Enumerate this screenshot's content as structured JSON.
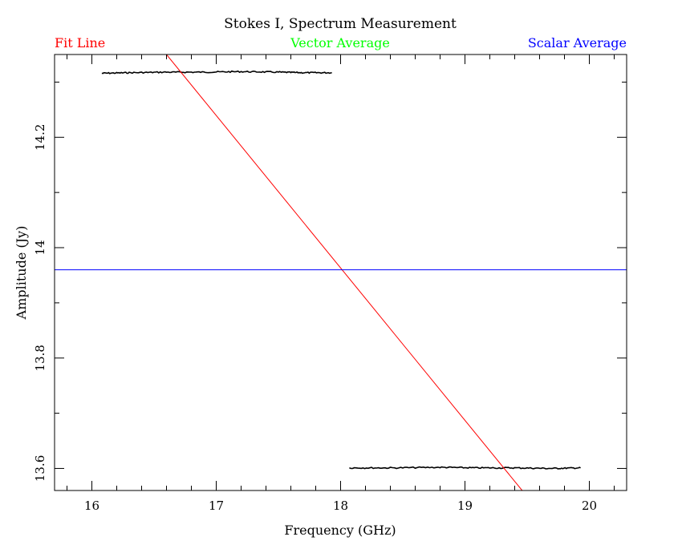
{
  "chart_data": {
    "type": "line",
    "title": "Stokes I, Spectrum Measurement",
    "xlabel": "Frequency (GHz)",
    "ylabel": "Amplitude (Jy)",
    "xlim": [
      15.7,
      20.3
    ],
    "ylim": [
      13.56,
      14.35
    ],
    "x_ticks": [
      16,
      17,
      18,
      19,
      20
    ],
    "y_ticks": [
      13.6,
      13.8,
      14,
      14.2
    ],
    "x_minor_step": 0.2,
    "y_minor_step": 0.1,
    "grid": false,
    "legend_position": "top",
    "legend": [
      {
        "label": "Fit Line",
        "color": "#ff0000"
      },
      {
        "label": "Vector Average",
        "color": "#00ff00"
      },
      {
        "label": "Scalar Average",
        "color": "#0000ff"
      }
    ],
    "series": [
      {
        "kind": "data",
        "color": "#000000",
        "x": [
          16.08,
          16.3,
          16.6,
          16.9,
          17.2,
          17.5,
          17.7,
          17.93
        ],
        "y": [
          14.316,
          14.317,
          14.318,
          14.318,
          14.319,
          14.318,
          14.317,
          14.317
        ]
      },
      {
        "kind": "data",
        "color": "#000000",
        "x": [
          18.07,
          18.4,
          18.8,
          19.1,
          19.4,
          19.7,
          19.93
        ],
        "y": [
          13.601,
          13.601,
          13.602,
          13.601,
          13.601,
          13.6,
          13.601
        ]
      },
      {
        "kind": "fit",
        "color": "#ff0000",
        "x": [
          16.6,
          19.46
        ],
        "y": [
          14.35,
          13.56
        ]
      },
      {
        "kind": "scalar-average",
        "color": "#0000ff",
        "x": [
          15.7,
          20.3
        ],
        "y": [
          13.96,
          13.96
        ]
      }
    ]
  }
}
